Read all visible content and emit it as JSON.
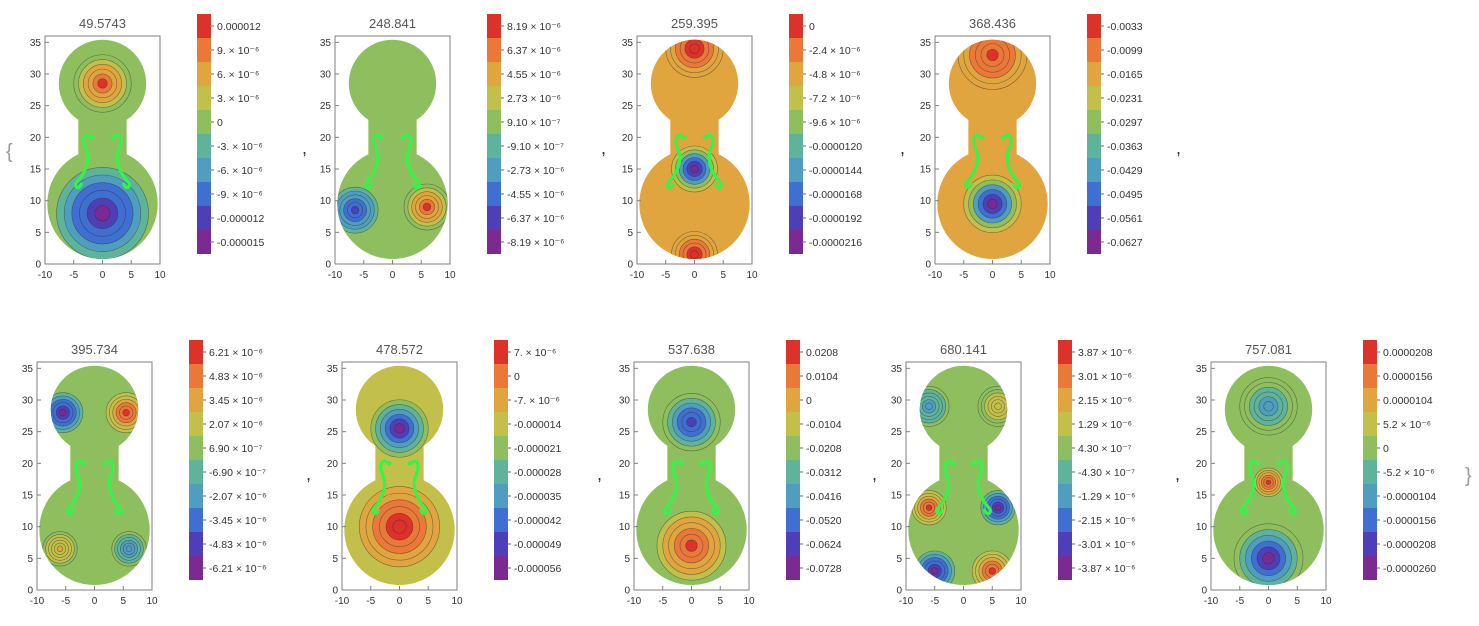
{
  "list_brackets": {
    "open": "{",
    "close": "}",
    "separator": ","
  },
  "colors": {
    "palette": [
      "#7a2a90",
      "#4e3fb8",
      "#3f6fd0",
      "#4f9ec0",
      "#5fb39a",
      "#8fbe5e",
      "#c2c04a",
      "#e0a53e",
      "#ea7838",
      "#dd3229"
    ],
    "frame": "#7f7f7f",
    "contour": "#2a2a2a",
    "f_hole": "#37f24a",
    "title_text": "#555555",
    "tick_text": "#333333",
    "bracket": "#9a9a9a"
  },
  "chart_data": [
    {
      "type": "contour",
      "title": "49.5743",
      "xlim": [
        -10,
        10
      ],
      "ylim": [
        0,
        36
      ],
      "xticks": [
        "-10",
        "-5",
        "0",
        "5",
        "10"
      ],
      "yticks": [
        "0",
        "5",
        "10",
        "15",
        "20",
        "25",
        "30",
        "35"
      ],
      "legend": [
        "0.000012",
        "9. × 10⁻⁶",
        "6. × 10⁻⁶",
        "3. × 10⁻⁶",
        "0",
        "-3. × 10⁻⁶",
        "-6. × 10⁻⁶",
        "-9. × 10⁻⁶",
        "-0.000012",
        "-0.000015"
      ],
      "mode": {
        "background": 0.5,
        "blobs": [
          {
            "x": 0,
            "y": 28.5,
            "v": 1.0,
            "r": 5
          },
          {
            "x": 0,
            "y": 8,
            "v": 0.0,
            "r": 8
          }
        ]
      }
    },
    {
      "type": "contour",
      "title": "248.841",
      "xlim": [
        -10,
        10
      ],
      "ylim": [
        0,
        36
      ],
      "xticks": [
        "-10",
        "-5",
        "0",
        "5",
        "10"
      ],
      "yticks": [
        "0",
        "5",
        "10",
        "15",
        "20",
        "25",
        "30",
        "35"
      ],
      "legend": [
        "8.19 × 10⁻⁶",
        "6.37 × 10⁻⁶",
        "4.55 × 10⁻⁶",
        "2.73 × 10⁻⁶",
        "9.10 × 10⁻⁷",
        "-9.10 × 10⁻⁷",
        "-2.73 × 10⁻⁶",
        "-4.55 × 10⁻⁶",
        "-6.37 × 10⁻⁶",
        "-8.19 × 10⁻⁶"
      ],
      "mode": {
        "background": 0.5,
        "blobs": [
          {
            "x": 6,
            "y": 9,
            "v": 1.0,
            "r": 4
          },
          {
            "x": -6.5,
            "y": 8.5,
            "v": 0.1,
            "r": 4
          }
        ]
      }
    },
    {
      "type": "contour",
      "title": "259.395",
      "xlim": [
        -10,
        10
      ],
      "ylim": [
        0,
        36
      ],
      "xticks": [
        "-10",
        "-5",
        "0",
        "5",
        "10"
      ],
      "yticks": [
        "0",
        "5",
        "10",
        "15",
        "20",
        "25",
        "30",
        "35"
      ],
      "legend": [
        "0",
        "-2.4 × 10⁻⁶",
        "-4.8 × 10⁻⁶",
        "-7.2 × 10⁻⁶",
        "-9.6 × 10⁻⁶",
        "-0.0000120",
        "-0.0000144",
        "-0.0000168",
        "-0.0000192",
        "-0.0000216"
      ],
      "mode": {
        "background": 0.75,
        "blobs": [
          {
            "x": 0,
            "y": 34,
            "v": 1.0,
            "r": 5
          },
          {
            "x": 0,
            "y": 1.5,
            "v": 1.0,
            "r": 4
          },
          {
            "x": 0,
            "y": 15,
            "v": 0.0,
            "r": 4
          }
        ]
      }
    },
    {
      "type": "contour",
      "title": "368.436",
      "xlim": [
        -10,
        10
      ],
      "ylim": [
        0,
        36
      ],
      "xticks": [
        "-10",
        "-5",
        "0",
        "5",
        "10"
      ],
      "yticks": [
        "0",
        "5",
        "10",
        "15",
        "20",
        "25",
        "30",
        "35"
      ],
      "legend": [
        "-0.0033",
        "-0.0099",
        "-0.0165",
        "-0.0231",
        "-0.0297",
        "-0.0363",
        "-0.0429",
        "-0.0495",
        "-0.0561",
        "-0.0627"
      ],
      "mode": {
        "background": 0.75,
        "blobs": [
          {
            "x": 0,
            "y": 33,
            "v": 0.95,
            "r": 6
          },
          {
            "x": 0,
            "y": 9.5,
            "v": 0.0,
            "r": 5
          }
        ]
      }
    },
    {
      "type": "contour",
      "title": "395.734",
      "xlim": [
        -10,
        10
      ],
      "ylim": [
        0,
        36
      ],
      "xticks": [
        "-10",
        "-5",
        "0",
        "5",
        "10"
      ],
      "yticks": [
        "0",
        "5",
        "10",
        "15",
        "20",
        "25",
        "30",
        "35"
      ],
      "legend": [
        "6.21 × 10⁻⁶",
        "4.83 × 10⁻⁶",
        "3.45 × 10⁻⁶",
        "2.07 × 10⁻⁶",
        "6.90 × 10⁻⁷",
        "-6.90 × 10⁻⁷",
        "-2.07 × 10⁻⁶",
        "-3.45 × 10⁻⁶",
        "-4.83 × 10⁻⁶",
        "-6.21 × 10⁻⁶"
      ],
      "mode": {
        "background": 0.55,
        "blobs": [
          {
            "x": 5.5,
            "y": 28,
            "v": 1.0,
            "r": 3.5
          },
          {
            "x": -5.5,
            "y": 28,
            "v": 0.0,
            "r": 3.5
          },
          {
            "x": 6,
            "y": 6.5,
            "v": 0.3,
            "r": 3
          },
          {
            "x": -6,
            "y": 6.5,
            "v": 0.75,
            "r": 3
          }
        ]
      }
    },
    {
      "type": "contour",
      "title": "478.572",
      "xlim": [
        -10,
        10
      ],
      "ylim": [
        0,
        36
      ],
      "xticks": [
        "-10",
        "-5",
        "0",
        "5",
        "10"
      ],
      "yticks": [
        "0",
        "5",
        "10",
        "15",
        "20",
        "25",
        "30",
        "35"
      ],
      "legend": [
        "7. × 10⁻⁶",
        "0",
        "-7. × 10⁻⁶",
        "-0.000014",
        "-0.000021",
        "-0.000028",
        "-0.000035",
        "-0.000042",
        "-0.000049",
        "-0.000056"
      ],
      "mode": {
        "background": 0.7,
        "blobs": [
          {
            "x": 0,
            "y": 25.5,
            "v": 0.05,
            "r": 5
          },
          {
            "x": 0,
            "y": 10,
            "v": 1.0,
            "r": 7
          }
        ]
      }
    },
    {
      "type": "contour",
      "title": "537.638",
      "xlim": [
        -10,
        10
      ],
      "ylim": [
        0,
        36
      ],
      "xticks": [
        "-10",
        "-5",
        "0",
        "5",
        "10"
      ],
      "yticks": [
        "0",
        "5",
        "10",
        "15",
        "20",
        "25",
        "30",
        "35"
      ],
      "legend": [
        "0.0208",
        "0.0104",
        "0",
        "-0.0104",
        "-0.0208",
        "-0.0312",
        "-0.0416",
        "-0.0520",
        "-0.0624",
        "-0.0728"
      ],
      "mode": {
        "background": 0.6,
        "blobs": [
          {
            "x": 0,
            "y": 26.5,
            "v": 0.1,
            "r": 5
          },
          {
            "x": 0,
            "y": 7,
            "v": 1.0,
            "r": 6
          }
        ]
      }
    },
    {
      "type": "contour",
      "title": "680.141",
      "xlim": [
        -10,
        10
      ],
      "ylim": [
        0,
        36
      ],
      "xticks": [
        "-10",
        "-5",
        "0",
        "5",
        "10"
      ],
      "yticks": [
        "0",
        "5",
        "10",
        "15",
        "20",
        "25",
        "30",
        "35"
      ],
      "legend": [
        "3.87 × 10⁻⁶",
        "3.01 × 10⁻⁶",
        "2.15 × 10⁻⁶",
        "1.29 × 10⁻⁶",
        "4.30 × 10⁻⁷",
        "-4.30 × 10⁻⁷",
        "-1.29 × 10⁻⁶",
        "-2.15 × 10⁻⁶",
        "-3.01 × 10⁻⁶",
        "-3.87 × 10⁻⁶"
      ],
      "mode": {
        "background": 0.55,
        "blobs": [
          {
            "x": -6,
            "y": 13,
            "v": 1.0,
            "r": 3
          },
          {
            "x": 6,
            "y": 13,
            "v": 0.0,
            "r": 3
          },
          {
            "x": -5,
            "y": 3,
            "v": 0.0,
            "r": 3.5
          },
          {
            "x": 5,
            "y": 3,
            "v": 1.0,
            "r": 3.5
          },
          {
            "x": -6,
            "y": 29,
            "v": 0.35,
            "r": 3.5
          },
          {
            "x": 6,
            "y": 29,
            "v": 0.7,
            "r": 3.5
          }
        ]
      }
    },
    {
      "type": "contour",
      "title": "757.081",
      "xlim": [
        -10,
        10
      ],
      "ylim": [
        0,
        36
      ],
      "xticks": [
        "-10",
        "-5",
        "0",
        "5",
        "10"
      ],
      "yticks": [
        "0",
        "5",
        "10",
        "15",
        "20",
        "25",
        "30",
        "35"
      ],
      "legend": [
        "0.0000208",
        "0.0000156",
        "0.0000104",
        "5.2 × 10⁻⁶",
        "0",
        "-5.2 × 10⁻⁶",
        "-0.0000104",
        "-0.0000156",
        "-0.0000208",
        "-0.0000260"
      ],
      "mode": {
        "background": 0.6,
        "blobs": [
          {
            "x": 0,
            "y": 29,
            "v": 0.3,
            "r": 5
          },
          {
            "x": 0,
            "y": 17,
            "v": 1.0,
            "r": 2.5
          },
          {
            "x": 0,
            "y": 5,
            "v": 0.0,
            "r": 6
          }
        ]
      }
    }
  ]
}
